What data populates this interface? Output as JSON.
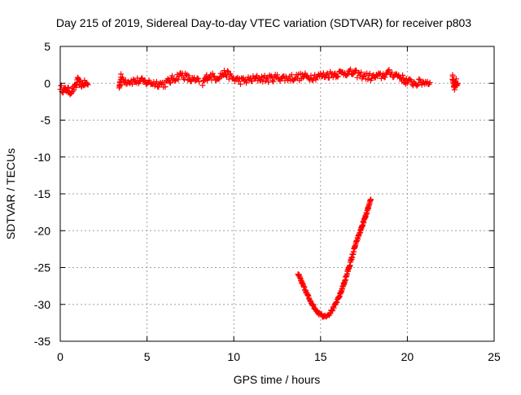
{
  "chart_data": {
    "type": "scatter",
    "title": "Day 215 of 2019, Sidereal Day-to-day VTEC variation (SDTVAR) for receiver p803",
    "xlabel": "GPS time / hours",
    "ylabel": "SDTVAR / TECUs",
    "xlim": [
      0,
      25
    ],
    "ylim": [
      -35,
      5
    ],
    "xticks": [
      0,
      5,
      10,
      15,
      20,
      25
    ],
    "yticks": [
      5,
      0,
      -5,
      -10,
      -15,
      -20,
      -25,
      -30,
      -35
    ],
    "grid": true,
    "marker": "+",
    "colors": {
      "series": "#ff0000",
      "axis": "#000000",
      "grid": "#a0a0a0"
    },
    "series": [
      {
        "name": "SDTVAR",
        "segments": [
          {
            "points": [
              [
                0.0,
                -0.5
              ],
              [
                0.2,
                -1.0
              ],
              [
                0.4,
                -0.8
              ],
              [
                0.6,
                -1.2
              ],
              [
                0.9,
                -0.4
              ],
              [
                1.0,
                0.4
              ],
              [
                1.2,
                -0.2
              ],
              [
                1.4,
                0.0
              ],
              [
                1.6,
                -0.2
              ]
            ],
            "spread": 0.8
          },
          {
            "points": [
              [
                3.4,
                -0.5
              ],
              [
                3.5,
                0.8
              ],
              [
                3.8,
                0.3
              ],
              [
                4.5,
                0.3
              ],
              [
                5.5,
                0.0
              ],
              [
                6.0,
                -0.1
              ],
              [
                6.5,
                0.6
              ],
              [
                7.0,
                1.2
              ],
              [
                7.5,
                0.5
              ],
              [
                8.0,
                0.2
              ]
            ],
            "spread": 1.0
          },
          {
            "points": [
              [
                8.2,
                0.0
              ],
              [
                8.5,
                1.0
              ],
              [
                9.0,
                0.8
              ],
              [
                9.5,
                1.4
              ],
              [
                10.0,
                0.6
              ],
              [
                10.5,
                0.3
              ],
              [
                11.0,
                0.5
              ],
              [
                11.5,
                0.7
              ],
              [
                12.0,
                0.6
              ],
              [
                12.5,
                0.8
              ],
              [
                13.0,
                0.7
              ],
              [
                13.5,
                0.8
              ],
              [
                14.0,
                0.9
              ],
              [
                14.5,
                0.9
              ],
              [
                15.0,
                1.0
              ],
              [
                15.5,
                1.2
              ],
              [
                16.0,
                1.3
              ],
              [
                16.5,
                1.5
              ],
              [
                17.0,
                1.3
              ],
              [
                17.5,
                1.0
              ],
              [
                18.0,
                0.8
              ],
              [
                18.5,
                1.0
              ],
              [
                19.0,
                1.4
              ],
              [
                19.5,
                1.0
              ],
              [
                20.0,
                0.2
              ],
              [
                20.5,
                0.0
              ],
              [
                21.0,
                0.2
              ],
              [
                21.3,
                0.1
              ]
            ],
            "spread": 1.0
          },
          {
            "points": [
              [
                22.6,
                1.0
              ],
              [
                22.7,
                -0.5
              ],
              [
                22.8,
                0.2
              ],
              [
                22.9,
                0.0
              ]
            ],
            "spread": 1.0
          },
          {
            "points": [
              [
                13.7,
                -25.8
              ],
              [
                14.0,
                -27.5
              ],
              [
                14.3,
                -29.0
              ],
              [
                14.6,
                -30.3
              ],
              [
                14.9,
                -31.2
              ],
              [
                15.2,
                -31.6
              ],
              [
                15.5,
                -31.3
              ],
              [
                15.8,
                -30.3
              ],
              [
                16.1,
                -28.8
              ],
              [
                16.4,
                -26.8
              ],
              [
                16.7,
                -24.5
              ],
              [
                17.0,
                -22.0
              ],
              [
                17.3,
                -20.0
              ],
              [
                17.6,
                -18.0
              ],
              [
                17.9,
                -15.8
              ]
            ],
            "spread": 0.4
          }
        ]
      }
    ]
  }
}
